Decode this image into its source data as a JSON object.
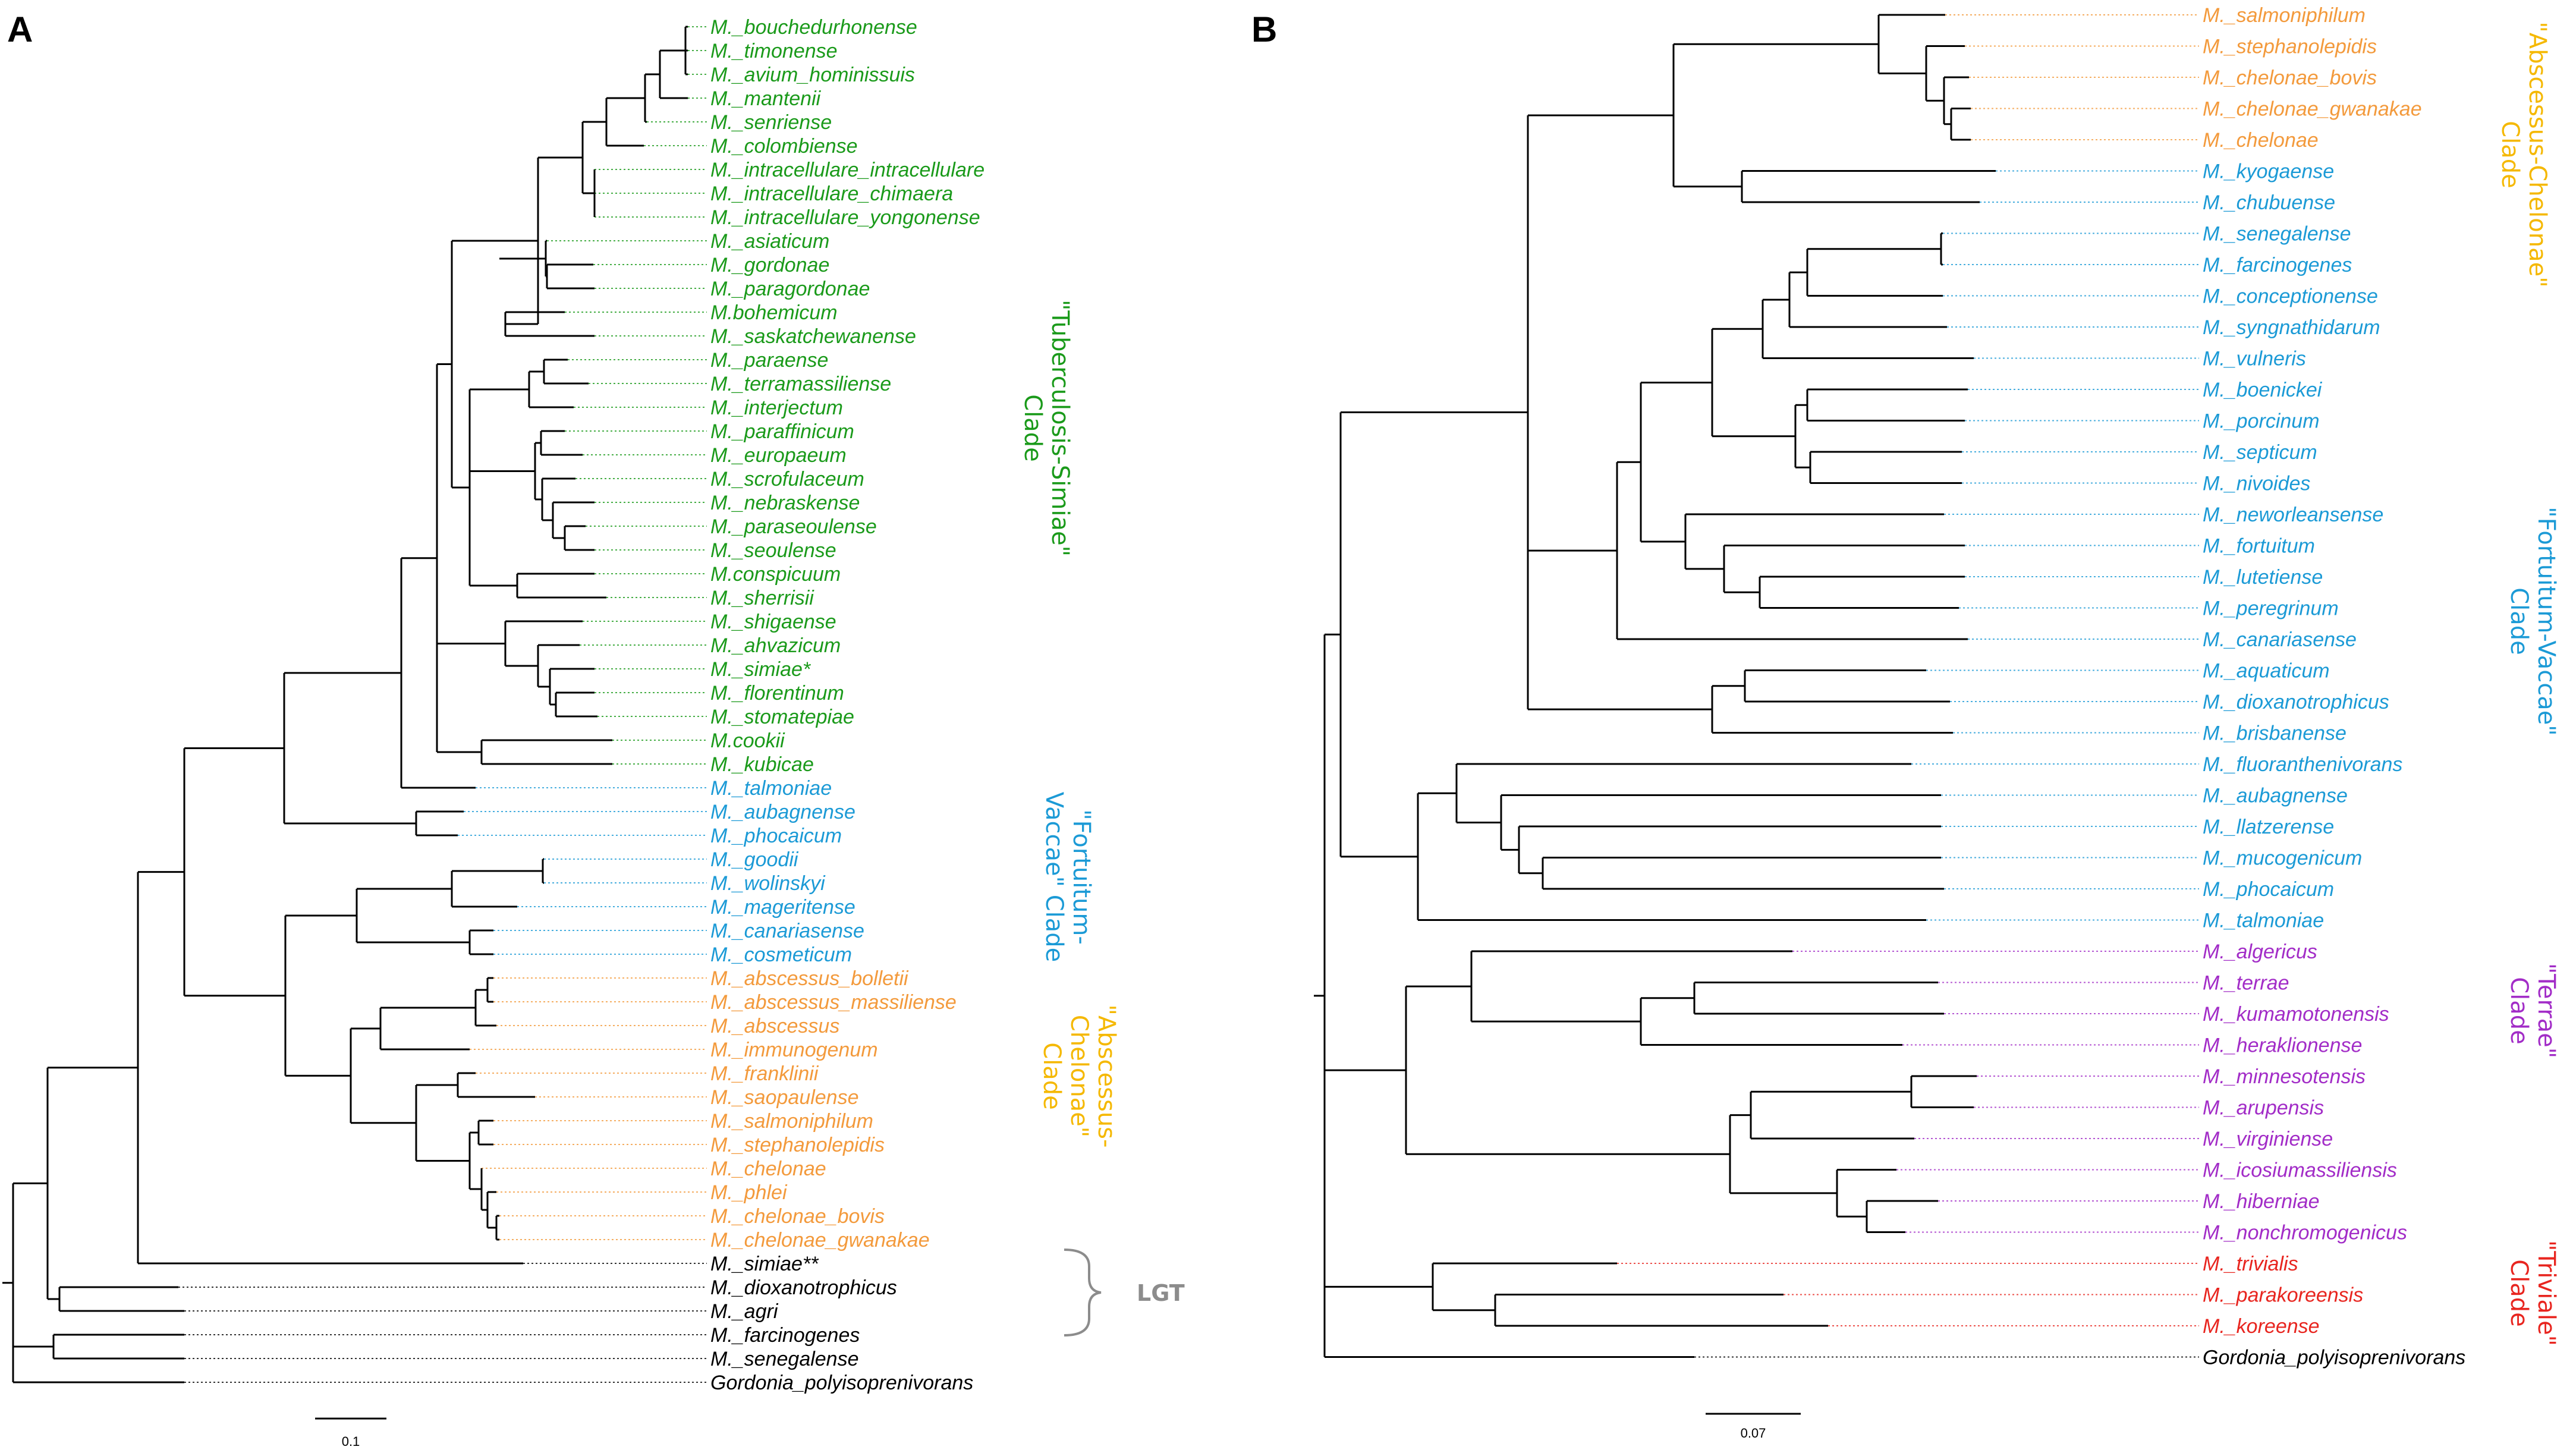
{
  "colors": {
    "tuberculosis": "#1a9a1a",
    "fortuitum": "#1b9ad6",
    "abscessus": "#f39a3c",
    "abscessus_clade_label": "#f5b800",
    "terrae": "#a22cc7",
    "triviale": "#e8251f",
    "other": "#000000",
    "lgt": "#8c8c8c",
    "tree": "#000000"
  },
  "panel_a": {
    "letter": "A",
    "tips": [
      {
        "name": "M._bouchedurhonense",
        "group": "tuberculosis"
      },
      {
        "name": "M._timonense",
        "group": "tuberculosis"
      },
      {
        "name": "M._avium_hominissuis",
        "group": "tuberculosis"
      },
      {
        "name": "M._mantenii",
        "group": "tuberculosis"
      },
      {
        "name": "M._senriense",
        "group": "tuberculosis"
      },
      {
        "name": "M._colombiense",
        "group": "tuberculosis"
      },
      {
        "name": "M._intracellulare_intracellulare",
        "group": "tuberculosis"
      },
      {
        "name": "M._intracellulare_chimaera",
        "group": "tuberculosis"
      },
      {
        "name": "M._intracellulare_yongonense",
        "group": "tuberculosis"
      },
      {
        "name": "M._asiaticum",
        "group": "tuberculosis"
      },
      {
        "name": "M._gordonae",
        "group": "tuberculosis"
      },
      {
        "name": "M._paragordonae",
        "group": "tuberculosis"
      },
      {
        "name": "M.bohemicum",
        "group": "tuberculosis"
      },
      {
        "name": "M._saskatchewanense",
        "group": "tuberculosis"
      },
      {
        "name": "M._paraense",
        "group": "tuberculosis"
      },
      {
        "name": "M._terramassiliense",
        "group": "tuberculosis"
      },
      {
        "name": "M._interjectum",
        "group": "tuberculosis"
      },
      {
        "name": "M._paraffinicum",
        "group": "tuberculosis"
      },
      {
        "name": "M._europaeum",
        "group": "tuberculosis"
      },
      {
        "name": "M._scrofulaceum",
        "group": "tuberculosis"
      },
      {
        "name": "M._nebraskense",
        "group": "tuberculosis"
      },
      {
        "name": "M._paraseoulense",
        "group": "tuberculosis"
      },
      {
        "name": "M._seoulense",
        "group": "tuberculosis"
      },
      {
        "name": "M.conspicuum",
        "group": "tuberculosis"
      },
      {
        "name": "M._sherrisii",
        "group": "tuberculosis"
      },
      {
        "name": "M._shigaense",
        "group": "tuberculosis"
      },
      {
        "name": "M._ahvazicum",
        "group": "tuberculosis"
      },
      {
        "name": "M._simiae*",
        "group": "tuberculosis"
      },
      {
        "name": "M._florentinum",
        "group": "tuberculosis"
      },
      {
        "name": "M._stomatepiae",
        "group": "tuberculosis"
      },
      {
        "name": "M.cookii",
        "group": "tuberculosis"
      },
      {
        "name": "M._kubicae",
        "group": "tuberculosis"
      },
      {
        "name": "M._talmoniae",
        "group": "fortuitum"
      },
      {
        "name": "M._aubagnense",
        "group": "fortuitum"
      },
      {
        "name": "M._phocaicum",
        "group": "fortuitum"
      },
      {
        "name": "M._goodii",
        "group": "fortuitum"
      },
      {
        "name": "M._wolinskyi",
        "group": "fortuitum"
      },
      {
        "name": "M._mageritense",
        "group": "fortuitum"
      },
      {
        "name": "M._canariasense",
        "group": "fortuitum"
      },
      {
        "name": "M._cosmeticum",
        "group": "fortuitum"
      },
      {
        "name": "M._abscessus_bolletii",
        "group": "abscessus"
      },
      {
        "name": "M._abscessus_massiliense",
        "group": "abscessus"
      },
      {
        "name": "M._abscessus",
        "group": "abscessus"
      },
      {
        "name": "M._immunogenum",
        "group": "abscessus"
      },
      {
        "name": "M._franklinii",
        "group": "abscessus"
      },
      {
        "name": "M._saopaulense",
        "group": "abscessus"
      },
      {
        "name": "M._salmoniphilum",
        "group": "abscessus"
      },
      {
        "name": "M._stephanolepidis",
        "group": "abscessus"
      },
      {
        "name": "M._chelonae",
        "group": "abscessus"
      },
      {
        "name": "M._phlei",
        "group": "abscessus"
      },
      {
        "name": "M._chelonae_bovis",
        "group": "abscessus"
      },
      {
        "name": "M._chelonae_gwanakae",
        "group": "abscessus"
      },
      {
        "name": "M._simiae**",
        "group": "other"
      },
      {
        "name": "M._dioxanotrophicus",
        "group": "other"
      },
      {
        "name": "M._agri",
        "group": "other"
      },
      {
        "name": "M._farcinogenes",
        "group": "other"
      },
      {
        "name": "M._senegalense",
        "group": "other"
      },
      {
        "name": "Gordonia_polyisoprenivorans",
        "group": "other"
      }
    ],
    "clade_labels": {
      "tuberculosis": [
        "\"Tuberculosis-Simiae\"",
        "Clade"
      ],
      "fortuitum": [
        "\"Fortuitum-",
        "Vaccae\" Clade"
      ],
      "abscessus": [
        "\"Abscessus-",
        "Chelonae\"",
        "Clade"
      ],
      "lgt": "LGT"
    },
    "scale_label": "0.1"
  },
  "panel_b": {
    "letter": "B",
    "tips": [
      {
        "name": "M._salmoniphilum",
        "group": "abscessus"
      },
      {
        "name": "M._stephanolepidis",
        "group": "abscessus"
      },
      {
        "name": "M._chelonae_bovis",
        "group": "abscessus"
      },
      {
        "name": "M._chelonae_gwanakae",
        "group": "abscessus"
      },
      {
        "name": "M._chelonae",
        "group": "abscessus"
      },
      {
        "name": "M._kyogaense",
        "group": "fortuitum"
      },
      {
        "name": "M._chubuense",
        "group": "fortuitum"
      },
      {
        "name": "M._senegalense",
        "group": "fortuitum"
      },
      {
        "name": "M._farcinogenes",
        "group": "fortuitum"
      },
      {
        "name": "M._conceptionense",
        "group": "fortuitum"
      },
      {
        "name": "M._syngnathidarum",
        "group": "fortuitum"
      },
      {
        "name": "M._vulneris",
        "group": "fortuitum"
      },
      {
        "name": "M._boenickei",
        "group": "fortuitum"
      },
      {
        "name": "M._porcinum",
        "group": "fortuitum"
      },
      {
        "name": "M._septicum",
        "group": "fortuitum"
      },
      {
        "name": "M._nivoides",
        "group": "fortuitum"
      },
      {
        "name": "M._neworleansense",
        "group": "fortuitum"
      },
      {
        "name": "M._fortuitum",
        "group": "fortuitum"
      },
      {
        "name": "M._lutetiense",
        "group": "fortuitum"
      },
      {
        "name": "M._peregrinum",
        "group": "fortuitum"
      },
      {
        "name": "M._canariasense",
        "group": "fortuitum"
      },
      {
        "name": "M._aquaticum",
        "group": "fortuitum"
      },
      {
        "name": "M._dioxanotrophicus",
        "group": "fortuitum"
      },
      {
        "name": "M._brisbanense",
        "group": "fortuitum"
      },
      {
        "name": "M._fluoranthenivorans",
        "group": "fortuitum"
      },
      {
        "name": "M._aubagnense",
        "group": "fortuitum"
      },
      {
        "name": "M._llatzerense",
        "group": "fortuitum"
      },
      {
        "name": "M._mucogenicum",
        "group": "fortuitum"
      },
      {
        "name": "M._phocaicum",
        "group": "fortuitum"
      },
      {
        "name": "M._talmoniae",
        "group": "fortuitum"
      },
      {
        "name": "M._algericus",
        "group": "terrae"
      },
      {
        "name": "M._terrae",
        "group": "terrae"
      },
      {
        "name": "M._kumamotonensis",
        "group": "terrae"
      },
      {
        "name": "M._heraklionense",
        "group": "terrae"
      },
      {
        "name": "M._minnesotensis",
        "group": "terrae"
      },
      {
        "name": "M._arupensis",
        "group": "terrae"
      },
      {
        "name": "M._virginiense",
        "group": "terrae"
      },
      {
        "name": "M._icosiumassiliensis",
        "group": "terrae"
      },
      {
        "name": "M._hiberniae",
        "group": "terrae"
      },
      {
        "name": "M._nonchromogenicus",
        "group": "terrae"
      },
      {
        "name": "M._trivialis",
        "group": "triviale"
      },
      {
        "name": "M._parakoreensis",
        "group": "triviale"
      },
      {
        "name": "M._koreense",
        "group": "triviale"
      },
      {
        "name": "Gordonia_polyisoprenivorans",
        "group": "other"
      }
    ],
    "clade_labels": {
      "abscessus": [
        "\"Abscessus-Chelonae\"",
        "Clade"
      ],
      "fortuitum": [
        "\"Fortuitum-Vaccae\"",
        "Clade"
      ],
      "terrae": [
        "\"Terrae\"",
        "Clade"
      ],
      "triviale": [
        "\"Triviale\"",
        "Clade"
      ]
    },
    "scale_label": "0.07"
  }
}
